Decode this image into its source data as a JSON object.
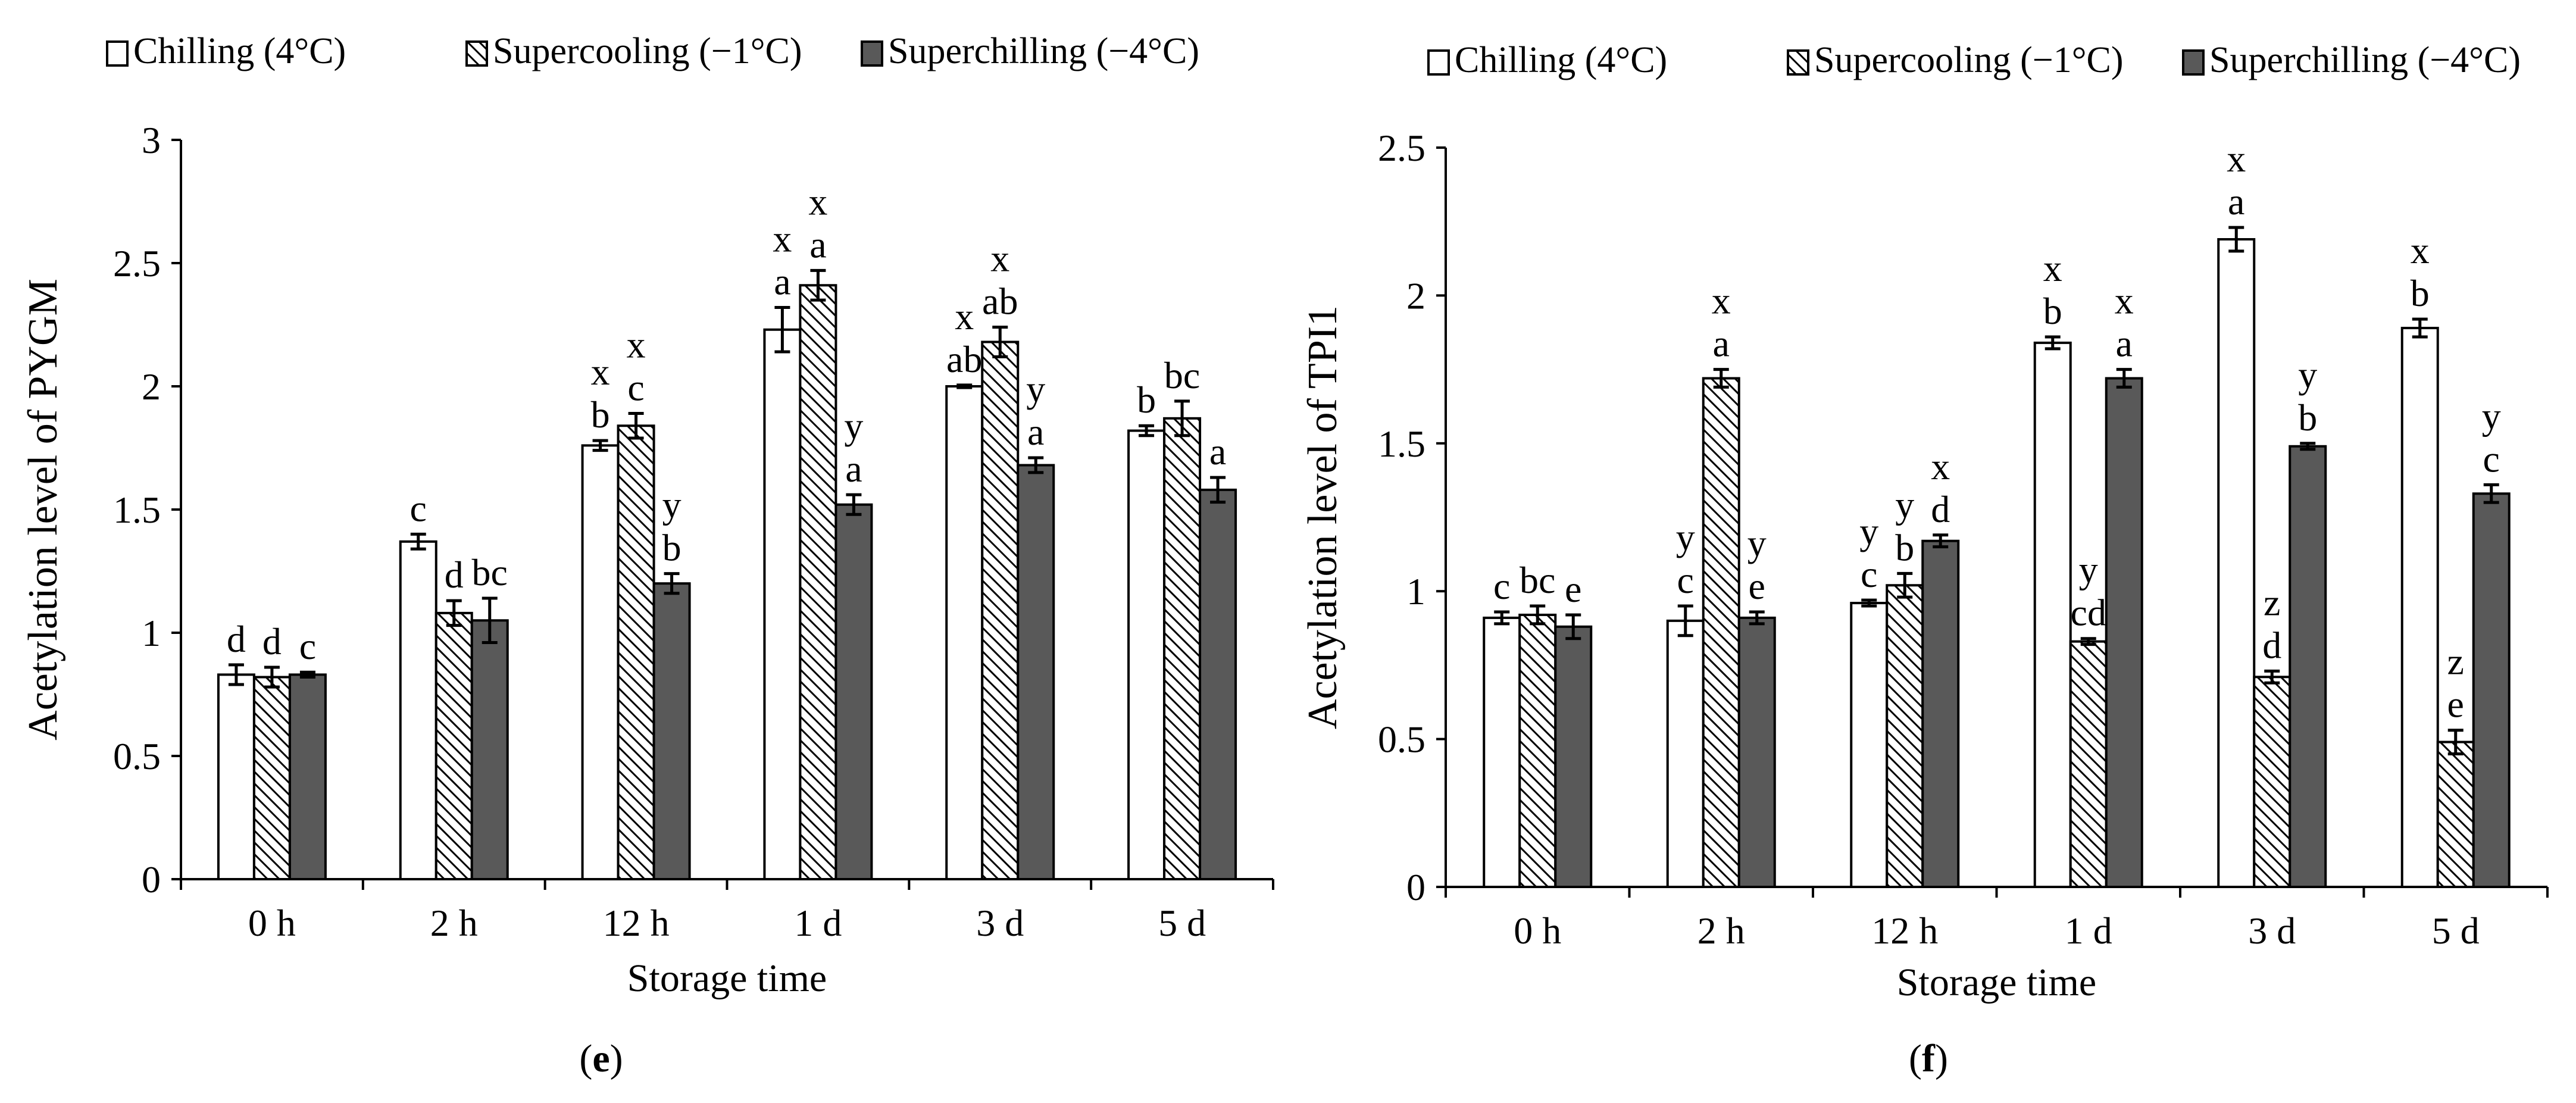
{
  "chart_data": [
    {
      "type": "bar",
      "panel_label": "e",
      "ylabel": "Acetylation level of PYGM",
      "xlabel": "Storage time",
      "ylim": [
        0,
        3
      ],
      "yticks": [
        "0",
        "0.5",
        "1",
        "1.5",
        "2",
        "2.5",
        "3"
      ],
      "ytick_values": [
        0,
        0.5,
        1,
        1.5,
        2,
        2.5,
        3
      ],
      "categories": [
        "0 h",
        "2 h",
        "12 h",
        "1 d",
        "3 d",
        "5 d"
      ],
      "legend": [
        "Chilling (4°C)",
        "Supercooling (−1°C)",
        "Superchilling  (−4°C)"
      ],
      "series": [
        {
          "name": "Chilling (4°C)",
          "values": [
            0.83,
            1.37,
            1.76,
            2.23,
            2.0,
            1.82
          ],
          "errors": [
            0.04,
            0.03,
            0.02,
            0.09,
            0.005,
            0.02
          ],
          "labels": [
            [
              "d"
            ],
            [
              "c"
            ],
            [
              "x",
              "b"
            ],
            [
              "x",
              "a"
            ],
            [
              "x",
              "ab"
            ],
            [
              "b"
            ]
          ]
        },
        {
          "name": "Supercooling (−1°C)",
          "values": [
            0.82,
            1.08,
            1.84,
            2.41,
            2.18,
            1.87
          ],
          "errors": [
            0.04,
            0.05,
            0.05,
            0.06,
            0.06,
            0.07
          ],
          "labels": [
            [
              "d"
            ],
            [
              "d"
            ],
            [
              "x",
              "c"
            ],
            [
              "x",
              "a"
            ],
            [
              "x",
              "ab"
            ],
            [
              "bc"
            ]
          ]
        },
        {
          "name": "Superchilling  (−4°C)",
          "values": [
            0.83,
            1.05,
            1.2,
            1.52,
            1.68,
            1.58
          ],
          "errors": [
            0.01,
            0.09,
            0.04,
            0.04,
            0.03,
            0.05
          ],
          "labels": [
            [
              "c"
            ],
            [
              "bc"
            ],
            [
              "y",
              "b"
            ],
            [
              "y",
              "a"
            ],
            [
              "y",
              "a"
            ],
            [
              "a"
            ]
          ]
        }
      ]
    },
    {
      "type": "bar",
      "panel_label": "f",
      "ylabel": "Acetylation level of TPI1",
      "xlabel": "Storage time",
      "ylim": [
        0,
        2.5
      ],
      "yticks": [
        "0",
        "0.5",
        "1",
        "1.5",
        "2",
        "2.5"
      ],
      "ytick_values": [
        0,
        0.5,
        1,
        1.5,
        2,
        2.5
      ],
      "categories": [
        "0 h",
        "2 h",
        "12 h",
        "1 d",
        "3 d",
        "5 d"
      ],
      "legend": [
        "Chilling (4°C)",
        "Supercooling (−1°C)",
        "Superchilling  (−4°C)"
      ],
      "series": [
        {
          "name": "Chilling (4°C)",
          "values": [
            0.91,
            0.9,
            0.96,
            1.84,
            2.19,
            1.89
          ],
          "errors": [
            0.02,
            0.05,
            0.01,
            0.02,
            0.04,
            0.03
          ],
          "labels": [
            [
              "c"
            ],
            [
              "y",
              "c"
            ],
            [
              "y",
              "c"
            ],
            [
              "x",
              "b"
            ],
            [
              "x",
              "a"
            ],
            [
              "x",
              "b"
            ]
          ]
        },
        {
          "name": "Supercooling (−1°C)",
          "values": [
            0.92,
            1.72,
            1.02,
            0.83,
            0.71,
            0.49
          ],
          "errors": [
            0.03,
            0.03,
            0.04,
            0.01,
            0.02,
            0.04
          ],
          "labels": [
            [
              "bc"
            ],
            [
              "x",
              "a"
            ],
            [
              "y",
              "b"
            ],
            [
              "y",
              "cd"
            ],
            [
              "z",
              "d"
            ],
            [
              "z",
              "e"
            ]
          ]
        },
        {
          "name": "Superchilling  (−4°C)",
          "values": [
            0.88,
            0.91,
            1.17,
            1.72,
            1.49,
            1.33
          ],
          "errors": [
            0.04,
            0.02,
            0.02,
            0.03,
            0.01,
            0.03
          ],
          "labels": [
            [
              "e"
            ],
            [
              "y",
              "e"
            ],
            [
              "x",
              "d"
            ],
            [
              "x",
              "a"
            ],
            [
              "y",
              "b"
            ],
            [
              "y",
              "c"
            ]
          ]
        }
      ]
    }
  ],
  "colors": {
    "chilling": "#ffffff",
    "supercooling_hatch": "#000000",
    "superchilling": "#595959"
  }
}
